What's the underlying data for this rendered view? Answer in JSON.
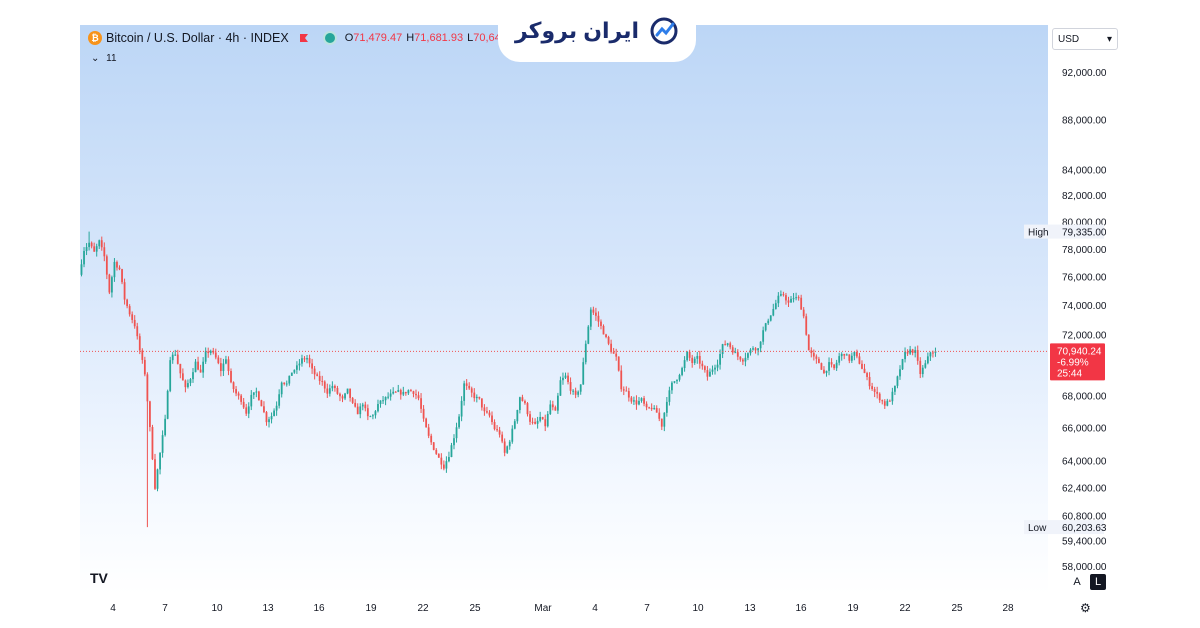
{
  "legend": {
    "symbol_icon": "bitcoin-icon",
    "symbol": "Bitcoin / U.S. Dollar · 4h · INDEX",
    "open_key": "O",
    "open": "71,479.47",
    "high_key": "H",
    "high": "71,681.93",
    "low_key": "L",
    "low": "70,64",
    "indicator_count": "11"
  },
  "brand": {
    "name": "ایران بروکر",
    "icon": "trend-chart-icon"
  },
  "currency": {
    "value": "USD"
  },
  "tradingview_logo": "TV",
  "axis_buttons": {
    "auto": "A",
    "log": "L"
  },
  "colors": {
    "up": "#26a69a",
    "down": "#ef5350",
    "last_price_bg": "#f23645",
    "price_line": "#ef5350"
  },
  "chart_data": {
    "type": "candlestick",
    "timeframe": "4h",
    "y_scale": "log",
    "grid": false,
    "y_ticks": [
      92000,
      88000,
      84000,
      82000,
      80000,
      78000,
      76000,
      74000,
      72000,
      68000,
      66000,
      64000,
      62400,
      60800,
      59400,
      58000
    ],
    "y_tick_labels": [
      "92,000.00",
      "88,000.00",
      "84,000.00",
      "82,000.00",
      "80,000.00",
      "78,000.00",
      "76,000.00",
      "74,000.00",
      "72,000.00",
      "68,000.00",
      "66,000.00",
      "64,000.00",
      "62,400.00",
      "60,800.00",
      "59,400.00",
      "58,000.00"
    ],
    "x_tick_labels": [
      "4",
      "7",
      "10",
      "13",
      "16",
      "19",
      "22",
      "25",
      "Mar",
      "4",
      "7",
      "10",
      "13",
      "16",
      "19",
      "22",
      "25",
      "28"
    ],
    "markers": {
      "high": {
        "label": "High",
        "value": "79,335.00",
        "price": 79335
      },
      "low": {
        "label": "Low",
        "value": "60,203.63",
        "price": 60203.63
      }
    },
    "last_price": {
      "value": "70,940.24",
      "change": "-6.99%",
      "countdown": "25:44",
      "price": 70940.24
    },
    "path": [
      [
        0,
        76200
      ],
      [
        2,
        78000
      ],
      [
        4,
        78500
      ],
      [
        6,
        77800
      ],
      [
        8,
        78600
      ],
      [
        10,
        77500
      ],
      [
        12,
        75000
      ],
      [
        14,
        77100
      ],
      [
        16,
        76600
      ],
      [
        18,
        74500
      ],
      [
        20,
        73500
      ],
      [
        22,
        72700
      ],
      [
        24,
        71000
      ],
      [
        26,
        69500
      ],
      [
        28,
        66000
      ],
      [
        30,
        62500
      ],
      [
        32,
        64500
      ],
      [
        34,
        66500
      ],
      [
        36,
        70500
      ],
      [
        38,
        70800
      ],
      [
        40,
        69500
      ],
      [
        42,
        68500
      ],
      [
        44,
        69200
      ],
      [
        46,
        70200
      ],
      [
        48,
        69500
      ],
      [
        50,
        70800
      ],
      [
        52,
        71000
      ],
      [
        54,
        70500
      ],
      [
        56,
        69700
      ],
      [
        58,
        70500
      ],
      [
        60,
        68800
      ],
      [
        62,
        68200
      ],
      [
        64,
        67800
      ],
      [
        66,
        67000
      ],
      [
        68,
        68000
      ],
      [
        70,
        68300
      ],
      [
        72,
        67500
      ],
      [
        74,
        66500
      ],
      [
        76,
        66800
      ],
      [
        78,
        67500
      ],
      [
        80,
        69000
      ],
      [
        82,
        68800
      ],
      [
        84,
        69600
      ],
      [
        86,
        69900
      ],
      [
        88,
        70400
      ],
      [
        90,
        70500
      ],
      [
        92,
        69700
      ],
      [
        94,
        69200
      ],
      [
        96,
        68900
      ],
      [
        98,
        68300
      ],
      [
        100,
        68700
      ],
      [
        102,
        68200
      ],
      [
        104,
        67800
      ],
      [
        106,
        68400
      ],
      [
        108,
        67500
      ],
      [
        110,
        67000
      ],
      [
        112,
        67600
      ],
      [
        114,
        66700
      ],
      [
        116,
        66800
      ],
      [
        118,
        67500
      ],
      [
        120,
        67800
      ],
      [
        122,
        68000
      ],
      [
        124,
        68200
      ],
      [
        126,
        68300
      ],
      [
        128,
        68200
      ],
      [
        130,
        68400
      ],
      [
        132,
        68300
      ],
      [
        134,
        67900
      ],
      [
        136,
        66500
      ],
      [
        138,
        65500
      ],
      [
        140,
        64800
      ],
      [
        142,
        64200
      ],
      [
        144,
        63700
      ],
      [
        146,
        64400
      ],
      [
        148,
        65500
      ],
      [
        150,
        66800
      ],
      [
        152,
        68800
      ],
      [
        154,
        68400
      ],
      [
        156,
        68000
      ],
      [
        158,
        67800
      ],
      [
        160,
        67000
      ],
      [
        162,
        66800
      ],
      [
        164,
        66000
      ],
      [
        166,
        65700
      ],
      [
        168,
        64500
      ],
      [
        170,
        65300
      ],
      [
        172,
        66500
      ],
      [
        174,
        68000
      ],
      [
        176,
        67500
      ],
      [
        178,
        66500
      ],
      [
        180,
        66200
      ],
      [
        182,
        66700
      ],
      [
        184,
        66200
      ],
      [
        186,
        67500
      ],
      [
        188,
        67000
      ],
      [
        190,
        69000
      ],
      [
        192,
        69300
      ],
      [
        194,
        68500
      ],
      [
        196,
        68000
      ],
      [
        198,
        68800
      ],
      [
        200,
        71500
      ],
      [
        202,
        73800
      ],
      [
        204,
        73300
      ],
      [
        206,
        72600
      ],
      [
        208,
        71800
      ],
      [
        210,
        71000
      ],
      [
        212,
        70500
      ],
      [
        214,
        68600
      ],
      [
        216,
        68300
      ],
      [
        218,
        67800
      ],
      [
        220,
        67600
      ],
      [
        222,
        67800
      ],
      [
        224,
        67200
      ],
      [
        226,
        67300
      ],
      [
        228,
        67000
      ],
      [
        230,
        66200
      ],
      [
        232,
        67800
      ],
      [
        234,
        68800
      ],
      [
        236,
        69200
      ],
      [
        238,
        69800
      ],
      [
        240,
        70800
      ],
      [
        242,
        70200
      ],
      [
        244,
        70500
      ],
      [
        246,
        69900
      ],
      [
        248,
        69300
      ],
      [
        250,
        69800
      ],
      [
        252,
        70200
      ],
      [
        254,
        71300
      ],
      [
        256,
        71500
      ],
      [
        258,
        71000
      ],
      [
        260,
        70600
      ],
      [
        262,
        70400
      ],
      [
        264,
        70800
      ],
      [
        266,
        71200
      ],
      [
        268,
        71100
      ],
      [
        270,
        72300
      ],
      [
        272,
        73100
      ],
      [
        274,
        73800
      ],
      [
        276,
        74600
      ],
      [
        278,
        74800
      ],
      [
        280,
        74200
      ],
      [
        282,
        74600
      ],
      [
        284,
        74500
      ],
      [
        286,
        73300
      ],
      [
        288,
        71000
      ],
      [
        290,
        70500
      ],
      [
        292,
        70200
      ],
      [
        294,
        69500
      ],
      [
        296,
        70100
      ],
      [
        298,
        69800
      ],
      [
        300,
        70600
      ],
      [
        302,
        70800
      ],
      [
        304,
        70400
      ],
      [
        306,
        70800
      ],
      [
        308,
        70200
      ],
      [
        310,
        69500
      ],
      [
        312,
        68800
      ],
      [
        314,
        68300
      ],
      [
        316,
        67900
      ],
      [
        318,
        67500
      ],
      [
        320,
        67800
      ],
      [
        322,
        68600
      ],
      [
        324,
        69800
      ],
      [
        326,
        70800
      ],
      [
        328,
        71000
      ],
      [
        330,
        70900
      ],
      [
        332,
        69500
      ],
      [
        334,
        70100
      ],
      [
        336,
        70900
      ],
      [
        338,
        70940
      ]
    ]
  }
}
